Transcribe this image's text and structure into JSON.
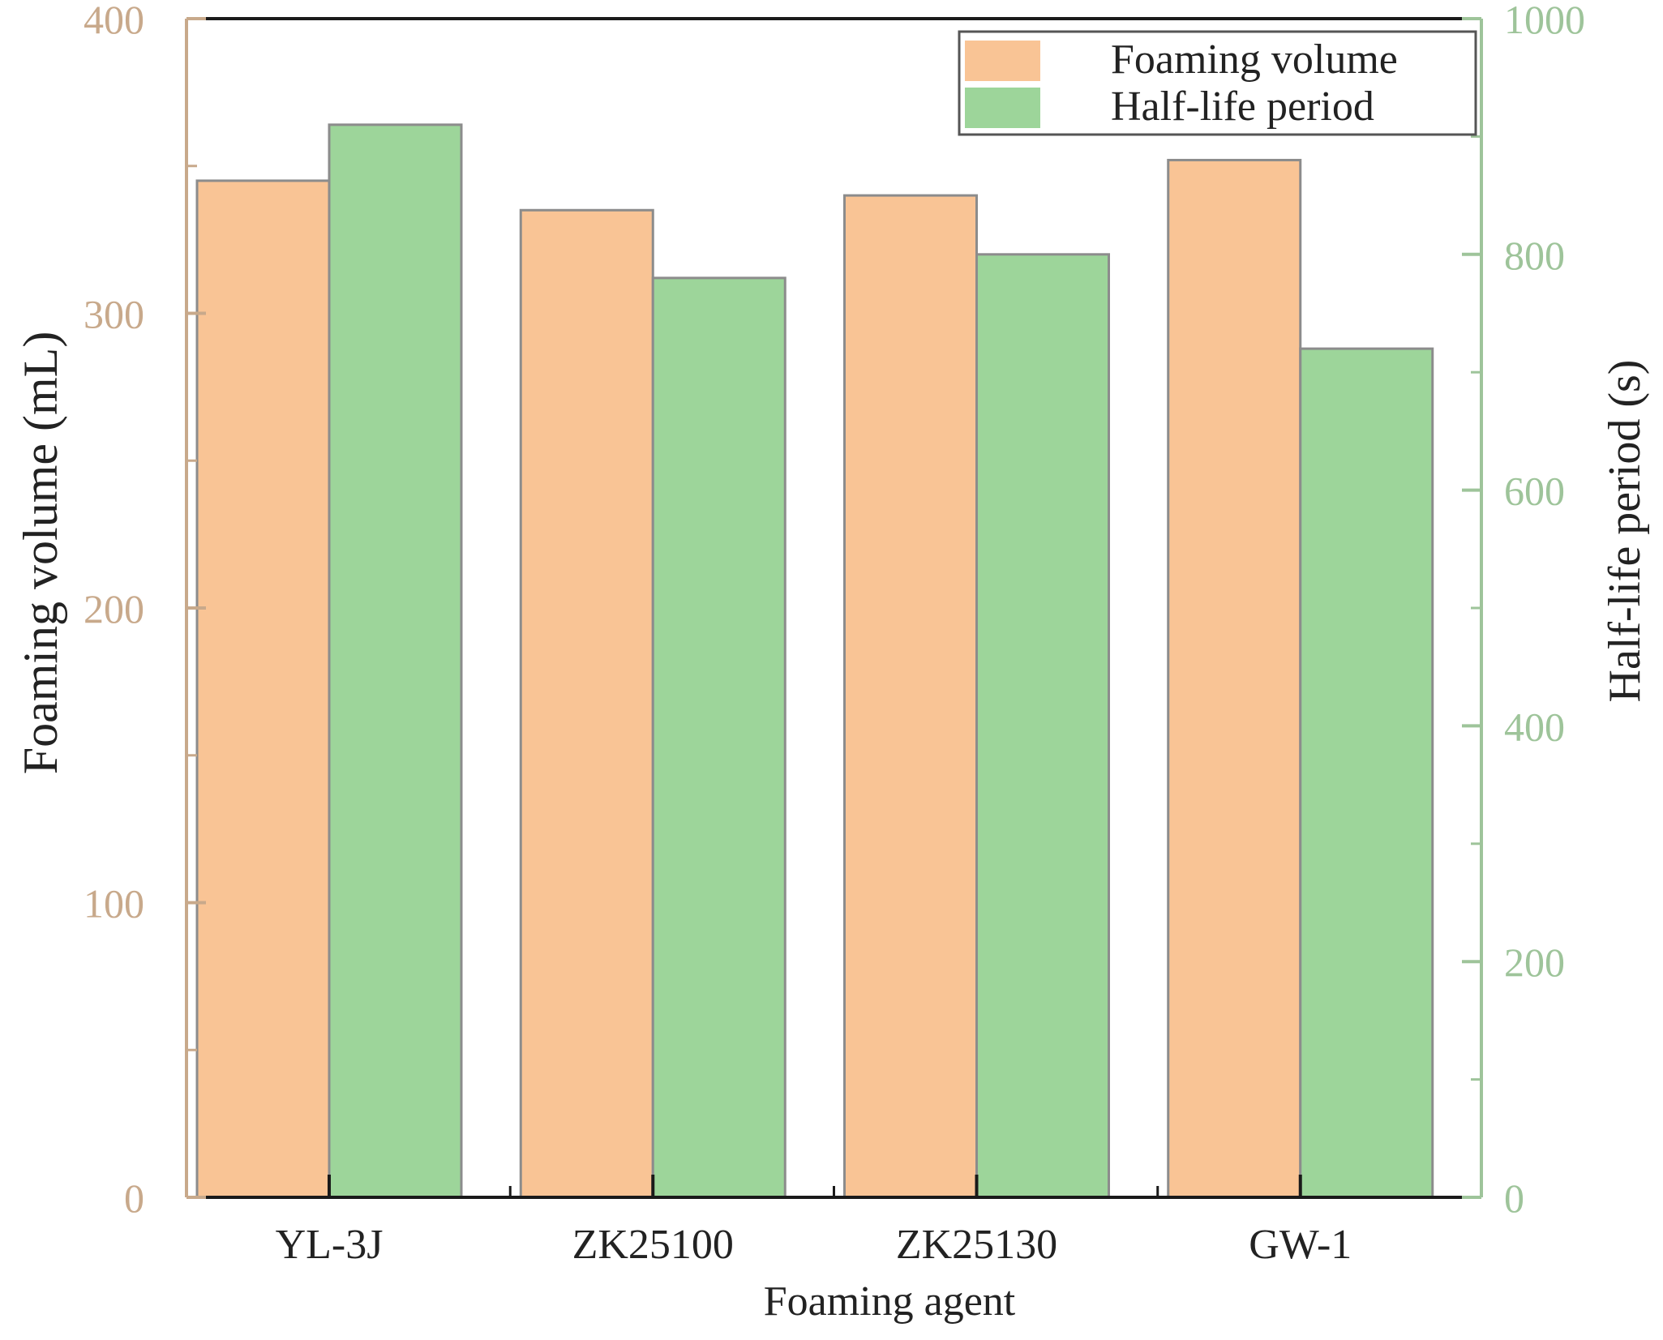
{
  "chart_data": {
    "type": "bar",
    "categories": [
      "YL-3J",
      "ZK25100",
      "ZK25130",
      "GW-1"
    ],
    "series": [
      {
        "name": "Foaming volume",
        "axis": "left",
        "color": "#f9c495",
        "values": [
          345,
          335,
          340,
          352
        ]
      },
      {
        "name": "Half-life period",
        "axis": "right",
        "color": "#9dd59a",
        "values": [
          910,
          780,
          800,
          720
        ]
      }
    ],
    "xlabel": "Foaming agent",
    "ylabel_left": "Foaming volume (mL)",
    "ylabel_right": "Half-life period (s)",
    "ylim_left": [
      0,
      400
    ],
    "ylim_right": [
      0,
      1000
    ],
    "yticks_left": [
      "0",
      "100",
      "200",
      "300",
      "400"
    ],
    "yticks_right": [
      "0",
      "200",
      "400",
      "600",
      "800",
      "1000"
    ],
    "left_axis_color": "#c8a98b",
    "right_axis_color": "#9ec49a",
    "legend_position": "top-right",
    "grid": false
  }
}
